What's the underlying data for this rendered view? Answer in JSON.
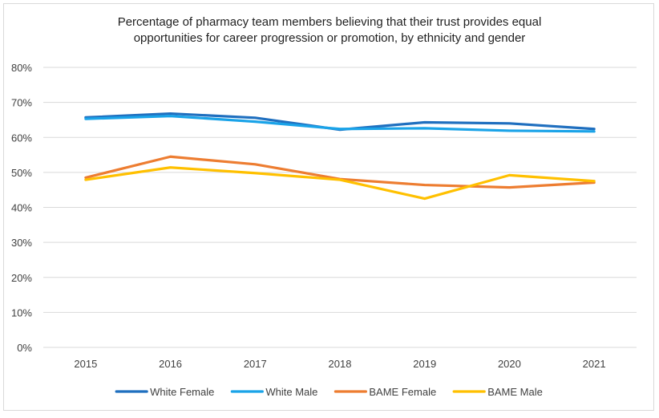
{
  "chart_data": {
    "type": "line",
    "title_lines": [
      "Percentage of pharmacy team members believing that their trust provides equal",
      "opportunities for career progression or promotion, by ethnicity and gender"
    ],
    "categories": [
      "2015",
      "2016",
      "2017",
      "2018",
      "2019",
      "2020",
      "2021"
    ],
    "ylim": [
      0,
      80
    ],
    "yticks": [
      0,
      10,
      20,
      30,
      40,
      50,
      60,
      70,
      80
    ],
    "ytick_labels": [
      "0%",
      "10%",
      "20%",
      "30%",
      "40%",
      "50%",
      "60%",
      "70%",
      "80%"
    ],
    "grid": true,
    "legend_position": "bottom",
    "series": [
      {
        "name": "White Female",
        "color": "#1f6fbf",
        "values": [
          65.7,
          66.8,
          65.6,
          62.2,
          64.3,
          64.0,
          62.4
        ]
      },
      {
        "name": "White Male",
        "color": "#1aa3e8",
        "values": [
          65.3,
          66.1,
          64.5,
          62.4,
          62.6,
          61.9,
          61.7
        ]
      },
      {
        "name": "BAME Female",
        "color": "#ed7d31",
        "values": [
          48.5,
          54.5,
          52.3,
          48.1,
          46.4,
          45.7,
          47.1
        ]
      },
      {
        "name": "BAME Male",
        "color": "#ffc000",
        "values": [
          47.9,
          51.4,
          49.8,
          47.9,
          42.5,
          49.2,
          47.5
        ]
      }
    ]
  }
}
